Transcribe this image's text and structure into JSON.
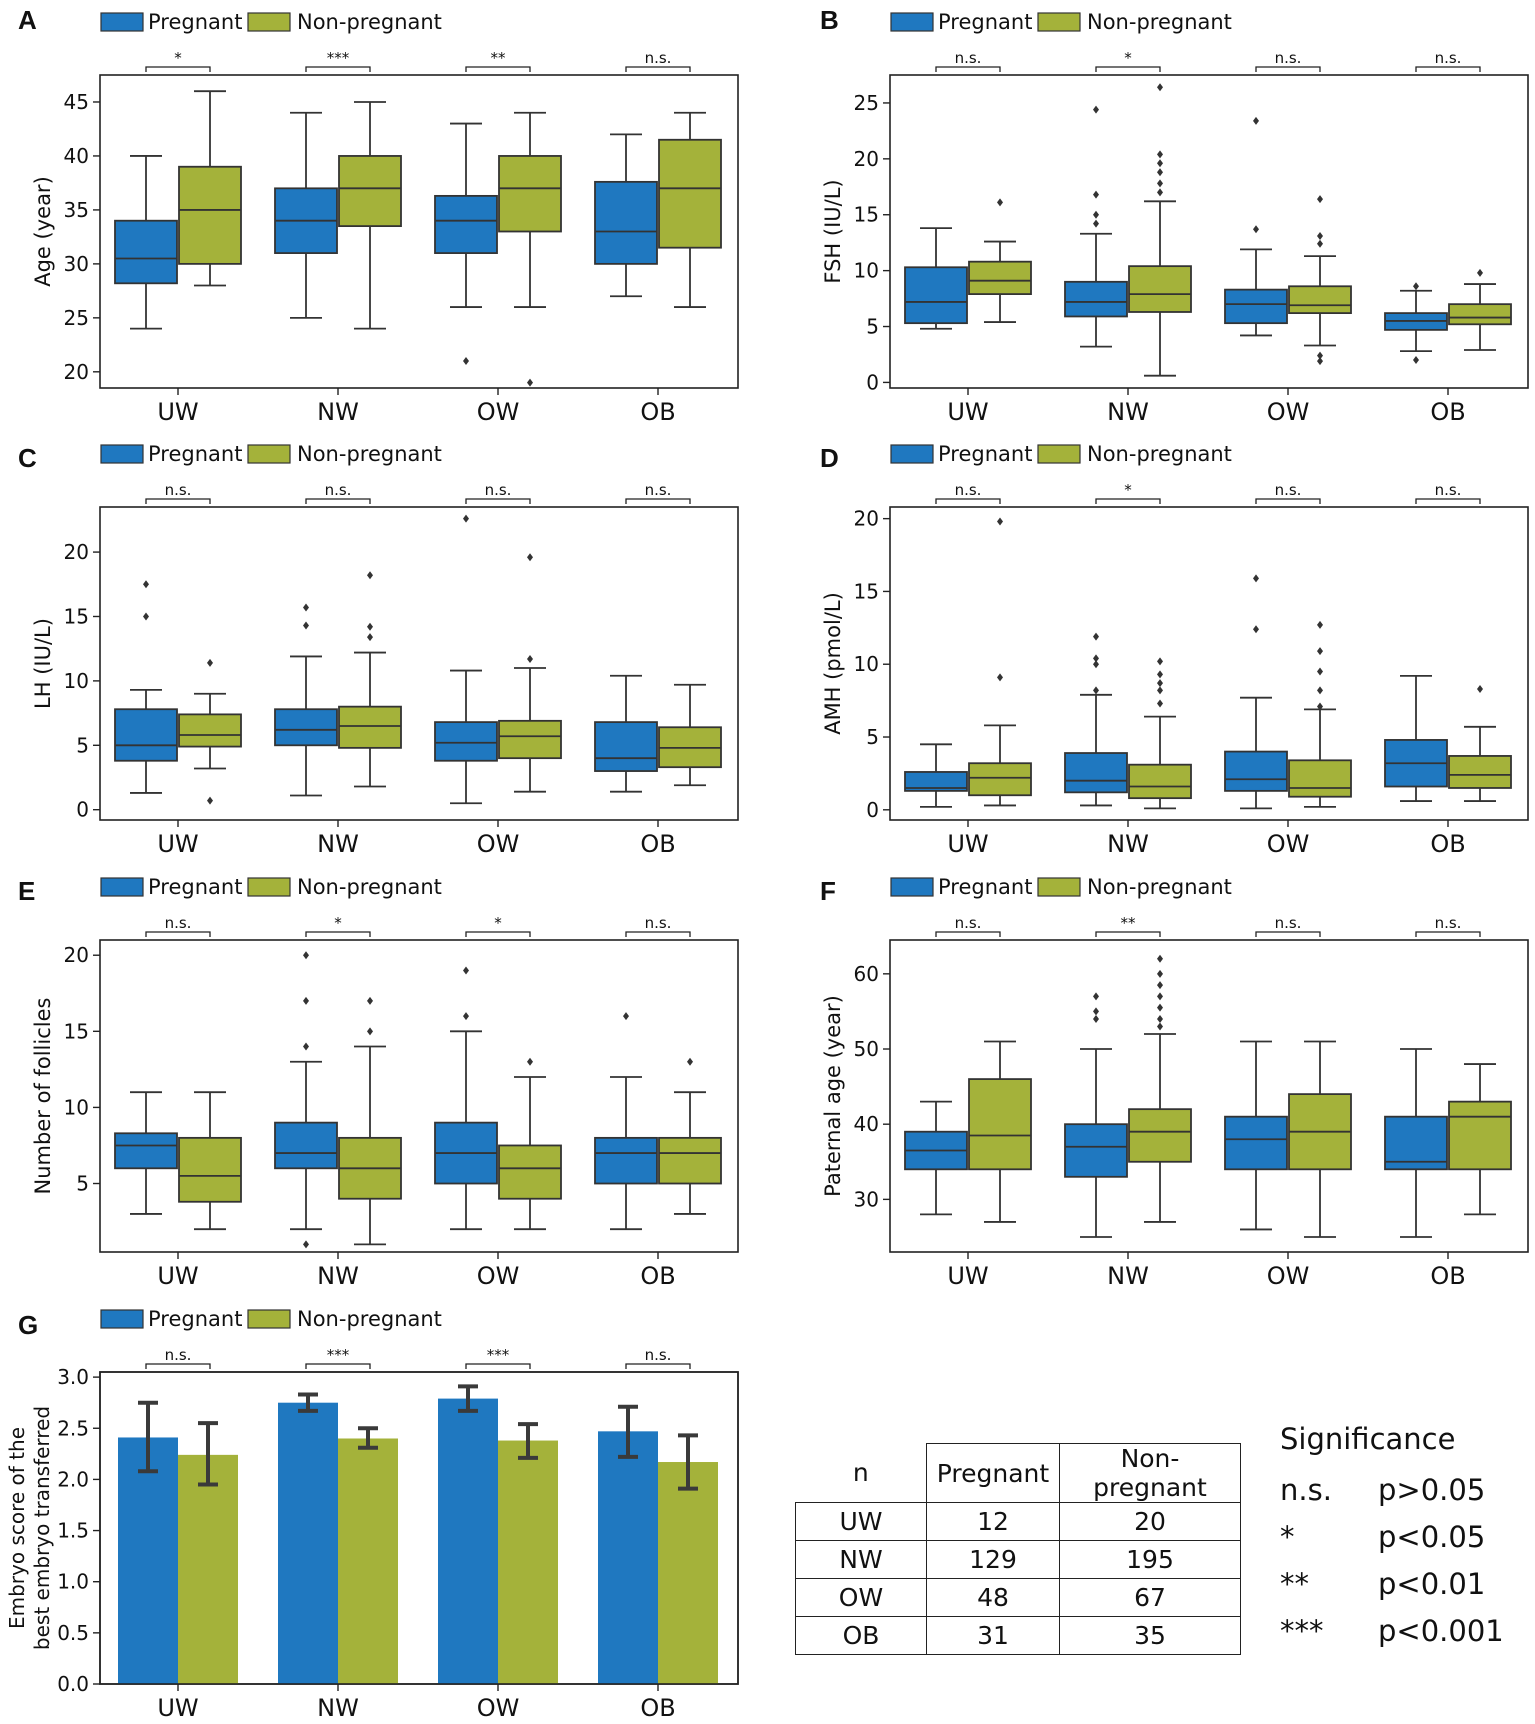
{
  "colors": {
    "pregnant": "#1f78c0",
    "non_pregnant": "#a4b23a",
    "outline": "#333333"
  },
  "legend": {
    "pregnant": "Pregnant",
    "non_pregnant": "Non-pregnant"
  },
  "chart_data": [
    {
      "type": "box",
      "panel": "A",
      "ylabel": "Age (year)",
      "ylim": [
        18.5,
        47.5
      ],
      "yticks": [
        20,
        25,
        30,
        35,
        40,
        45
      ],
      "categories": [
        "UW",
        "NW",
        "OW",
        "OB"
      ],
      "significance": [
        "*",
        "***",
        "**",
        "n.s."
      ],
      "series": [
        {
          "name": "Pregnant",
          "boxes": [
            {
              "whislo": 24,
              "q1": 28.2,
              "med": 30.5,
              "q3": 34,
              "whishi": 40,
              "fliers": []
            },
            {
              "whislo": 25,
              "q1": 31,
              "med": 34,
              "q3": 37,
              "whishi": 44,
              "fliers": []
            },
            {
              "whislo": 26,
              "q1": 31,
              "med": 34,
              "q3": 36.3,
              "whishi": 43,
              "fliers": [
                21
              ]
            },
            {
              "whislo": 27,
              "q1": 30,
              "med": 33,
              "q3": 37.6,
              "whishi": 42,
              "fliers": []
            }
          ]
        },
        {
          "name": "Non-pregnant",
          "boxes": [
            {
              "whislo": 28,
              "q1": 30,
              "med": 35,
              "q3": 39,
              "whishi": 46,
              "fliers": []
            },
            {
              "whislo": 24,
              "q1": 33.5,
              "med": 37,
              "q3": 40,
              "whishi": 45,
              "fliers": []
            },
            {
              "whislo": 26,
              "q1": 33,
              "med": 37,
              "q3": 40,
              "whishi": 44,
              "fliers": [
                19
              ]
            },
            {
              "whislo": 26,
              "q1": 31.5,
              "med": 37,
              "q3": 41.5,
              "whishi": 44,
              "fliers": []
            }
          ]
        }
      ]
    },
    {
      "type": "box",
      "panel": "B",
      "ylabel": "FSH (IU/L)",
      "ylim": [
        -0.5,
        27.5
      ],
      "yticks": [
        0,
        5,
        10,
        15,
        20,
        25
      ],
      "categories": [
        "UW",
        "NW",
        "OW",
        "OB"
      ],
      "significance": [
        "n.s.",
        "*",
        "n.s.",
        "n.s."
      ],
      "series": [
        {
          "name": "Pregnant",
          "boxes": [
            {
              "whislo": 4.8,
              "q1": 5.3,
              "med": 7.2,
              "q3": 10.3,
              "whishi": 13.8,
              "fliers": []
            },
            {
              "whislo": 3.2,
              "q1": 5.9,
              "med": 7.2,
              "q3": 9.0,
              "whishi": 13.3,
              "fliers": [
                14.2,
                15.0,
                16.8,
                24.4
              ]
            },
            {
              "whislo": 4.2,
              "q1": 5.3,
              "med": 7.0,
              "q3": 8.3,
              "whishi": 11.9,
              "fliers": [
                13.7,
                23.4
              ]
            },
            {
              "whislo": 2.8,
              "q1": 4.7,
              "med": 5.5,
              "q3": 6.2,
              "whishi": 8.2,
              "fliers": [
                2.0,
                8.6
              ]
            }
          ]
        },
        {
          "name": "Non-pregnant",
          "boxes": [
            {
              "whislo": 5.4,
              "q1": 7.9,
              "med": 9.1,
              "q3": 10.8,
              "whishi": 12.6,
              "fliers": [
                16.1
              ]
            },
            {
              "whislo": 0.6,
              "q1": 6.3,
              "med": 7.9,
              "q3": 10.4,
              "whishi": 16.2,
              "fliers": [
                17.0,
                17.8,
                18.8,
                19.6,
                20.4,
                26.4
              ]
            },
            {
              "whislo": 3.3,
              "q1": 6.2,
              "med": 6.9,
              "q3": 8.6,
              "whishi": 11.3,
              "fliers": [
                1.9,
                2.4,
                12.4,
                13.1,
                16.4
              ]
            },
            {
              "whislo": 2.9,
              "q1": 5.2,
              "med": 5.8,
              "q3": 7.0,
              "whishi": 8.8,
              "fliers": [
                9.8
              ]
            }
          ]
        }
      ]
    },
    {
      "type": "box",
      "panel": "C",
      "ylabel": "LH (IU/L)",
      "ylim": [
        -0.8,
        23.5
      ],
      "yticks": [
        0,
        5,
        10,
        15,
        20
      ],
      "categories": [
        "UW",
        "NW",
        "OW",
        "OB"
      ],
      "significance": [
        "n.s.",
        "n.s.",
        "n.s.",
        "n.s."
      ],
      "series": [
        {
          "name": "Pregnant",
          "boxes": [
            {
              "whislo": 1.3,
              "q1": 3.8,
              "med": 5.0,
              "q3": 7.8,
              "whishi": 9.3,
              "fliers": [
                15.0,
                17.5
              ]
            },
            {
              "whislo": 1.1,
              "q1": 5.0,
              "med": 6.2,
              "q3": 7.8,
              "whishi": 11.9,
              "fliers": [
                14.3,
                15.7
              ]
            },
            {
              "whislo": 0.5,
              "q1": 3.8,
              "med": 5.2,
              "q3": 6.8,
              "whishi": 10.8,
              "fliers": [
                22.6
              ]
            },
            {
              "whislo": 1.4,
              "q1": 3.0,
              "med": 4.0,
              "q3": 6.8,
              "whishi": 10.4,
              "fliers": []
            }
          ]
        },
        {
          "name": "Non-pregnant",
          "boxes": [
            {
              "whislo": 3.2,
              "q1": 4.9,
              "med": 5.8,
              "q3": 7.4,
              "whishi": 9.0,
              "fliers": [
                0.7,
                11.4
              ]
            },
            {
              "whislo": 1.8,
              "q1": 4.8,
              "med": 6.5,
              "q3": 8.0,
              "whishi": 12.2,
              "fliers": [
                13.4,
                14.2,
                18.2
              ]
            },
            {
              "whislo": 1.4,
              "q1": 4.0,
              "med": 5.7,
              "q3": 6.9,
              "whishi": 11.0,
              "fliers": [
                11.7,
                19.6
              ]
            },
            {
              "whislo": 1.9,
              "q1": 3.3,
              "med": 4.8,
              "q3": 6.4,
              "whishi": 9.7,
              "fliers": []
            }
          ]
        }
      ]
    },
    {
      "type": "box",
      "panel": "D",
      "ylabel": "AMH (pmol/L)",
      "ylim": [
        -0.7,
        20.8
      ],
      "yticks": [
        0,
        5,
        10,
        15,
        20
      ],
      "categories": [
        "UW",
        "NW",
        "OW",
        "OB"
      ],
      "significance": [
        "n.s.",
        "*",
        "n.s.",
        "n.s."
      ],
      "series": [
        {
          "name": "Pregnant",
          "boxes": [
            {
              "whislo": 0.2,
              "q1": 1.3,
              "med": 1.5,
              "q3": 2.6,
              "whishi": 4.5,
              "fliers": []
            },
            {
              "whislo": 0.3,
              "q1": 1.2,
              "med": 2.0,
              "q3": 3.9,
              "whishi": 7.9,
              "fliers": [
                8.2,
                10.0,
                10.4,
                11.9
              ]
            },
            {
              "whislo": 0.1,
              "q1": 1.3,
              "med": 2.1,
              "q3": 4.0,
              "whishi": 7.7,
              "fliers": [
                12.4,
                15.9
              ]
            },
            {
              "whislo": 0.6,
              "q1": 1.6,
              "med": 3.2,
              "q3": 4.8,
              "whishi": 9.2,
              "fliers": []
            }
          ]
        },
        {
          "name": "Non-pregnant",
          "boxes": [
            {
              "whislo": 0.3,
              "q1": 1.0,
              "med": 2.2,
              "q3": 3.2,
              "whishi": 5.8,
              "fliers": [
                9.1,
                19.8
              ]
            },
            {
              "whislo": 0.1,
              "q1": 0.8,
              "med": 1.6,
              "q3": 3.1,
              "whishi": 6.4,
              "fliers": [
                7.3,
                8.2,
                8.7,
                9.3,
                10.2
              ]
            },
            {
              "whislo": 0.2,
              "q1": 0.9,
              "med": 1.5,
              "q3": 3.4,
              "whishi": 6.9,
              "fliers": [
                7.1,
                8.2,
                9.5,
                10.9,
                12.7
              ]
            },
            {
              "whislo": 0.6,
              "q1": 1.5,
              "med": 2.4,
              "q3": 3.7,
              "whishi": 5.7,
              "fliers": [
                8.3
              ]
            }
          ]
        }
      ]
    },
    {
      "type": "box",
      "panel": "E",
      "ylabel": "Number of follicles",
      "ylim": [
        0.5,
        21
      ],
      "yticks": [
        5,
        10,
        15,
        20
      ],
      "categories": [
        "UW",
        "NW",
        "OW",
        "OB"
      ],
      "significance": [
        "n.s.",
        "*",
        "*",
        "n.s."
      ],
      "series": [
        {
          "name": "Pregnant",
          "boxes": [
            {
              "whislo": 3,
              "q1": 6,
              "med": 7.5,
              "q3": 8.3,
              "whishi": 11,
              "fliers": []
            },
            {
              "whislo": 2,
              "q1": 6,
              "med": 7,
              "q3": 9,
              "whishi": 13,
              "fliers": [
                1,
                14,
                17,
                20
              ]
            },
            {
              "whislo": 2,
              "q1": 5,
              "med": 7,
              "q3": 9,
              "whishi": 15,
              "fliers": [
                16,
                19
              ]
            },
            {
              "whislo": 2,
              "q1": 5,
              "med": 7,
              "q3": 8,
              "whishi": 12,
              "fliers": [
                16
              ]
            }
          ]
        },
        {
          "name": "Non-pregnant",
          "boxes": [
            {
              "whislo": 2,
              "q1": 3.8,
              "med": 5.5,
              "q3": 8,
              "whishi": 11,
              "fliers": []
            },
            {
              "whislo": 1,
              "q1": 4,
              "med": 6,
              "q3": 8,
              "whishi": 14,
              "fliers": [
                15,
                17
              ]
            },
            {
              "whislo": 2,
              "q1": 4,
              "med": 6,
              "q3": 7.5,
              "whishi": 12,
              "fliers": [
                13
              ]
            },
            {
              "whislo": 3,
              "q1": 5,
              "med": 7,
              "q3": 8,
              "whishi": 11,
              "fliers": [
                13
              ]
            }
          ]
        }
      ]
    },
    {
      "type": "box",
      "panel": "F",
      "ylabel": "Paternal age (year)",
      "ylim": [
        23,
        64.5
      ],
      "yticks": [
        30,
        40,
        50,
        60
      ],
      "categories": [
        "UW",
        "NW",
        "OW",
        "OB"
      ],
      "significance": [
        "n.s.",
        "**",
        "n.s.",
        "n.s."
      ],
      "series": [
        {
          "name": "Pregnant",
          "boxes": [
            {
              "whislo": 28,
              "q1": 34,
              "med": 36.5,
              "q3": 39,
              "whishi": 43,
              "fliers": []
            },
            {
              "whislo": 25,
              "q1": 33,
              "med": 37,
              "q3": 40,
              "whishi": 50,
              "fliers": [
                54,
                55,
                57
              ]
            },
            {
              "whislo": 26,
              "q1": 34,
              "med": 38,
              "q3": 41,
              "whishi": 51,
              "fliers": []
            },
            {
              "whislo": 25,
              "q1": 34,
              "med": 35,
              "q3": 41,
              "whishi": 50,
              "fliers": []
            }
          ]
        },
        {
          "name": "Non-pregnant",
          "boxes": [
            {
              "whislo": 27,
              "q1": 34,
              "med": 38.5,
              "q3": 46,
              "whishi": 51,
              "fliers": []
            },
            {
              "whislo": 27,
              "q1": 35,
              "med": 39,
              "q3": 42,
              "whishi": 52,
              "fliers": [
                53,
                54,
                55.5,
                57,
                58.5,
                60,
                62
              ]
            },
            {
              "whislo": 25,
              "q1": 34,
              "med": 39,
              "q3": 44,
              "whishi": 51,
              "fliers": []
            },
            {
              "whislo": 28,
              "q1": 34,
              "med": 41,
              "q3": 43,
              "whishi": 48,
              "fliers": []
            }
          ]
        }
      ]
    },
    {
      "type": "bar",
      "panel": "G",
      "ylabel": "Embryo score of the best embryo transferred",
      "ylabel_lines": [
        "Embryo score of the",
        "best embryo transferred"
      ],
      "ylim": [
        0,
        3.05
      ],
      "yticks": [
        "0.0",
        "0.5",
        "1.0",
        "1.5",
        "2.0",
        "2.5",
        "3.0"
      ],
      "categories": [
        "UW",
        "NW",
        "OW",
        "OB"
      ],
      "significance": [
        "n.s.",
        "***",
        "***",
        "n.s."
      ],
      "series": [
        {
          "name": "Pregnant",
          "values": [
            2.41,
            2.75,
            2.79,
            2.47
          ],
          "err_low": [
            2.08,
            2.67,
            2.67,
            2.22
          ],
          "err_high": [
            2.75,
            2.83,
            2.91,
            2.71
          ]
        },
        {
          "name": "Non-pregnant",
          "values": [
            2.24,
            2.4,
            2.38,
            2.17
          ],
          "err_low": [
            1.95,
            2.31,
            2.21,
            1.91
          ],
          "err_high": [
            2.55,
            2.5,
            2.54,
            2.43
          ]
        }
      ]
    }
  ],
  "n_table": {
    "header": [
      "n",
      "Pregnant",
      "Non-pregnant"
    ],
    "rows": [
      [
        "UW",
        "12",
        "20"
      ],
      [
        "NW",
        "129",
        "195"
      ],
      [
        "OW",
        "48",
        "67"
      ],
      [
        "OB",
        "31",
        "35"
      ]
    ]
  },
  "significance_key": {
    "title": "Significance",
    "items": [
      {
        "symbol": "n.s.",
        "meaning": "p>0.05"
      },
      {
        "symbol": "*",
        "meaning": "p<0.05"
      },
      {
        "symbol": "**",
        "meaning": "p<0.01"
      },
      {
        "symbol": "***",
        "meaning": "p<0.001"
      }
    ]
  }
}
